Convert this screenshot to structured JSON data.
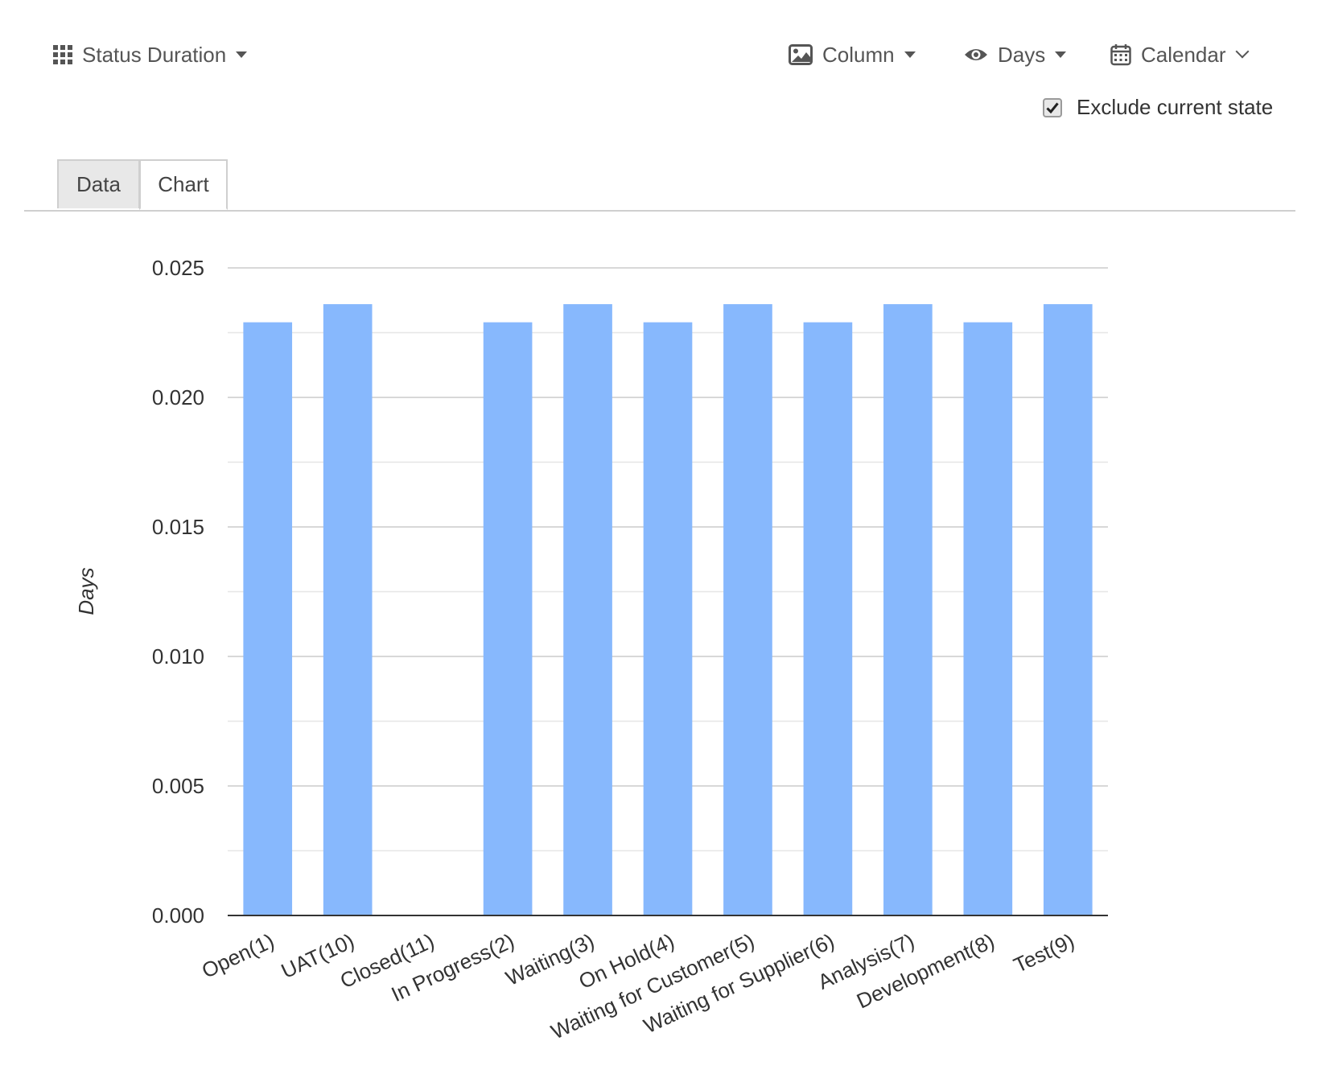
{
  "toolbar": {
    "report_label": "Status Duration",
    "report_icon": "grid-icon",
    "chart_type_label": "Column",
    "chart_type_icon": "image-icon",
    "unit_label": "Days",
    "unit_icon": "eye-icon",
    "calendar_label": "Calendar",
    "calendar_icon": "calendar-icon",
    "exclude_label": "Exclude current state",
    "exclude_checked": true
  },
  "tabs": [
    {
      "label": "Data",
      "active": false
    },
    {
      "label": "Chart",
      "active": true
    }
  ],
  "colors": {
    "bar": "#87b8fd",
    "grid": "#cccccc",
    "minor_grid": "#e6e6e6",
    "axis": "#333333",
    "text": "#333333"
  },
  "chart_data": {
    "type": "bar",
    "title": "",
    "xlabel": "",
    "ylabel": "Days",
    "ylim": [
      0,
      0.025
    ],
    "yticks": [
      "0.000",
      "0.005",
      "0.010",
      "0.015",
      "0.020",
      "0.025"
    ],
    "grid": true,
    "legend": "none",
    "categories": [
      "Open(1)",
      "UAT(10)",
      "Closed(11)",
      "In Progress(2)",
      "Waiting(3)",
      "On Hold(4)",
      "Waiting for Customer(5)",
      "Waiting for Supplier(6)",
      "Analysis(7)",
      "Development(8)",
      "Test(9)"
    ],
    "values": [
      0.0229,
      0.0236,
      0,
      0.0229,
      0.0236,
      0.0229,
      0.0236,
      0.0229,
      0.0236,
      0.0229,
      0.0236
    ]
  }
}
